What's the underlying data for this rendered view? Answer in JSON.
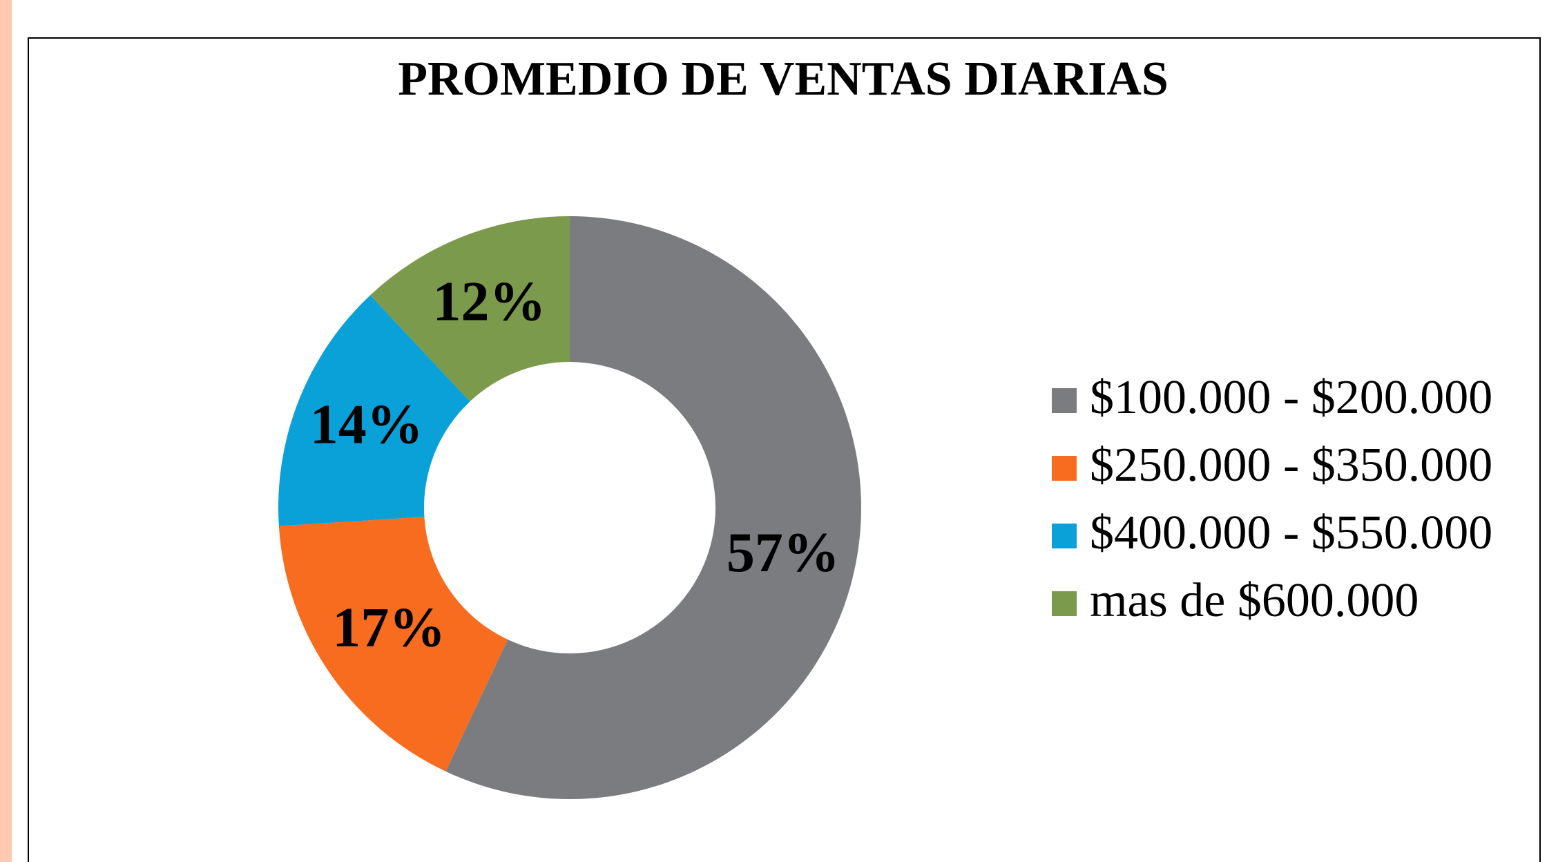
{
  "chart_data": {
    "type": "pie",
    "title": "PROMEDIO DE VENTAS DIARIAS",
    "categories": [
      "$100.000 - $200.000",
      "$250.000 - $350.000",
      "$400.000 - $550.000",
      "mas de $600.000"
    ],
    "values": [
      57,
      17,
      14,
      12
    ],
    "value_labels": [
      "57%",
      "17%",
      "14%",
      "12%"
    ],
    "colors": [
      "#7b7c80",
      "#f86c1f",
      "#0aa0d8",
      "#7c9a4c"
    ],
    "legend": "right"
  }
}
